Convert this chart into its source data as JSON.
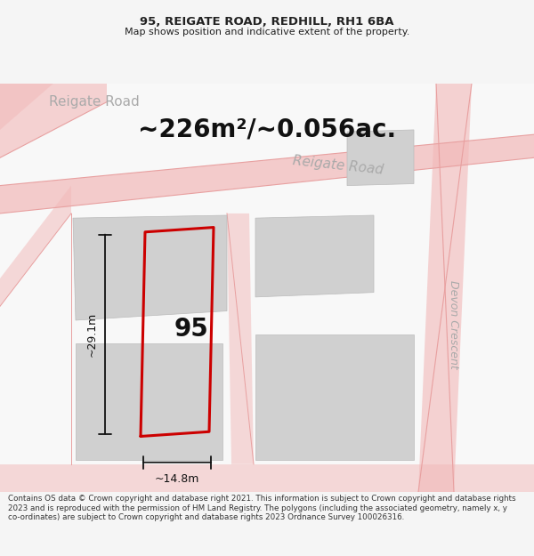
{
  "title_line1": "95, REIGATE ROAD, REDHILL, RH1 6BA",
  "title_line2": "Map shows position and indicative extent of the property.",
  "area_text": "~226m²/~0.056ac.",
  "property_number": "95",
  "dim_height": "~29.1m",
  "dim_width": "~14.8m",
  "bg_color": "#f5f5f5",
  "map_bg": "#f0f0f0",
  "footer_text": "Contains OS data © Crown copyright and database right 2021. This information is subject to Crown copyright and database rights 2023 and is reproduced with the permission of HM Land Registry. The polygons (including the associated geometry, namely x, y co-ordinates) are subject to Crown copyright and database rights 2023 Ordnance Survey 100026316.",
  "road_color": "#f2b8b8",
  "building_color": "#d0d0d0",
  "building_edge": "#bbbbbb",
  "plot_color": "#cc0000",
  "road_label_color": "#aaaaaa",
  "text_color": "#222222"
}
